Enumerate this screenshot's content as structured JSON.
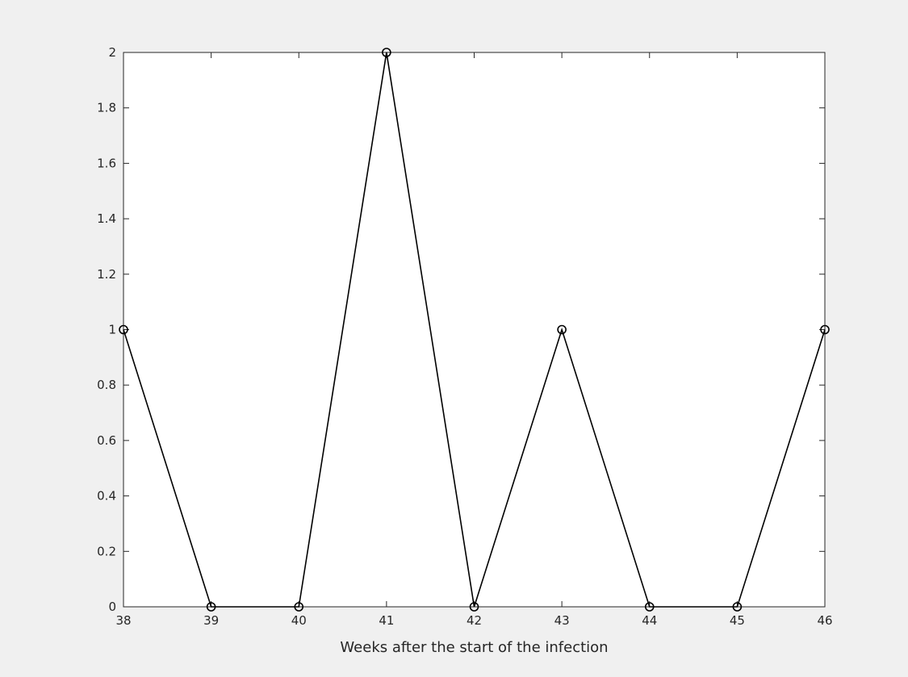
{
  "chart_data": {
    "type": "line",
    "title": "",
    "xlabel": "Weeks after the start of the infection",
    "ylabel": "",
    "x": [
      38,
      39,
      40,
      41,
      42,
      43,
      44,
      45,
      46
    ],
    "series": [
      {
        "values": [
          1,
          0,
          0,
          2,
          0,
          1,
          0,
          0,
          1
        ]
      }
    ],
    "marker": "circle",
    "line_color": "#000000",
    "xlim": [
      38,
      46
    ],
    "ylim": [
      0,
      2
    ],
    "xticks": [
      38,
      39,
      40,
      41,
      42,
      43,
      44,
      45,
      46
    ],
    "xtick_labels": [
      "38",
      "39",
      "40",
      "41",
      "42",
      "43",
      "44",
      "45",
      "46"
    ],
    "yticks": [
      0,
      0.2,
      0.4,
      0.6,
      0.8,
      1,
      1.2,
      1.4,
      1.6,
      1.8,
      2
    ],
    "ytick_labels": [
      "0",
      "0.2",
      "0.4",
      "0.6",
      "0.8",
      "1",
      "1.2",
      "1.4",
      "1.6",
      "1.8",
      "2"
    ],
    "grid": false,
    "background_color": "#f0f0f0",
    "axes_color": "#ffffff"
  }
}
